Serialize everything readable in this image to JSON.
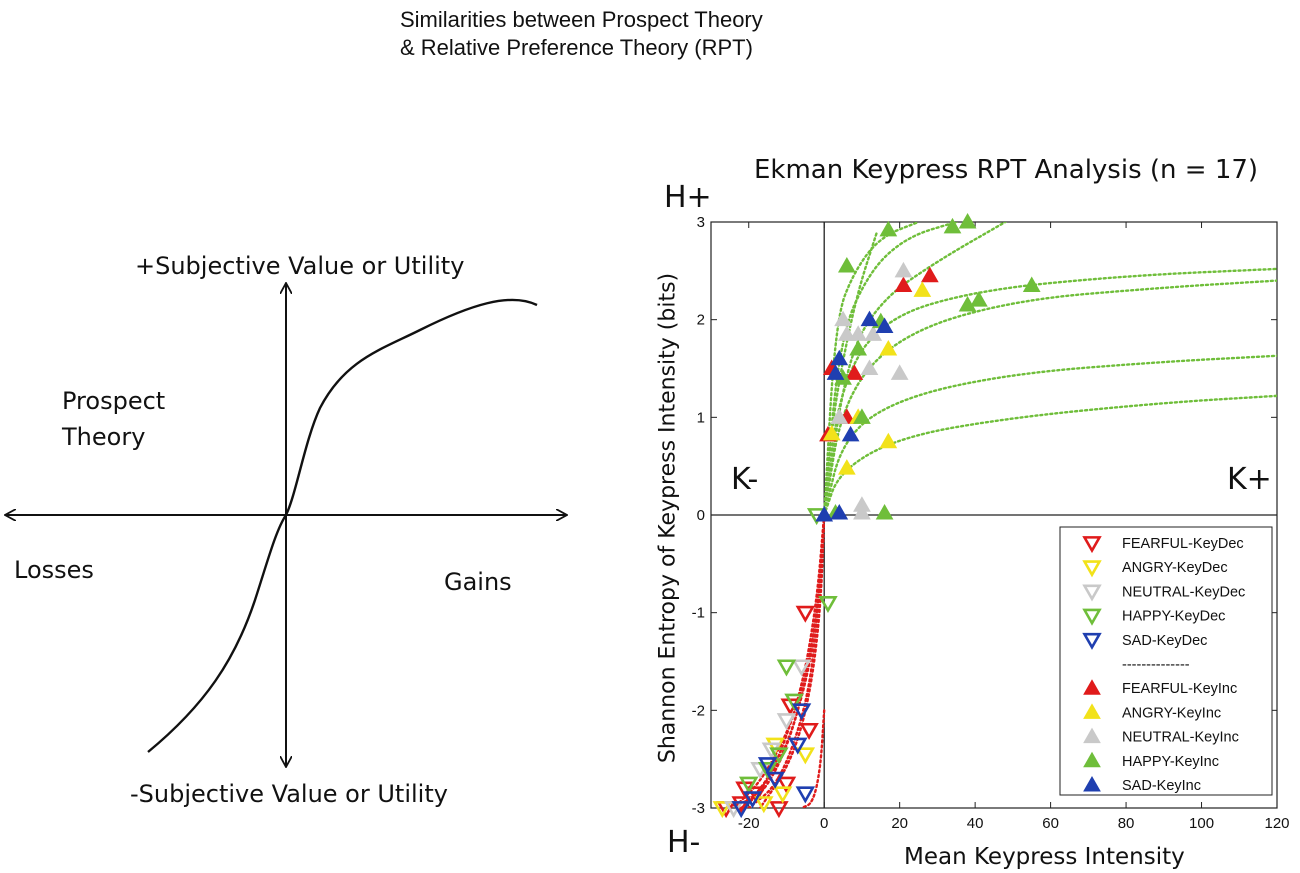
{
  "figure_title": {
    "line1": "Similarities between Prospect Theory",
    "line2": "& Relative Preference Theory (RPT)"
  },
  "prospect_panel": {
    "y_pos_label": "+Subjective Value or Utility",
    "y_neg_label": "-Subjective Value or Utility",
    "x_neg_label": "Losses",
    "x_pos_label": "Gains",
    "theory_line1": "Prospect",
    "theory_line2": "Theory"
  },
  "rpt_panel": {
    "h_plus": "H+",
    "h_minus": "H-",
    "k_minus": "K-",
    "k_plus": "K+"
  },
  "colors": {
    "fearful": "#e01b1b",
    "angry": "#f2e21a",
    "neutral": "#c9c9c9",
    "happy": "#6fbe3a",
    "sad": "#1f3fb0"
  },
  "chart_data": {
    "type": "scatter",
    "title": "Ekman Keypress RPT Analysis (n = 17)",
    "xlabel": "Mean Keypress Intensity",
    "ylabel": "Shannon Entropy of Keypress Intensity (bits)",
    "xlim": [
      -30,
      120
    ],
    "ylim": [
      -3,
      3
    ],
    "xticks": [
      -20,
      0,
      20,
      40,
      60,
      80,
      100,
      120
    ],
    "yticks": [
      -3,
      -2,
      -1,
      0,
      1,
      2,
      3
    ],
    "legend_position": "bottom-right",
    "legend_separator": "--------------",
    "series": [
      {
        "name": "FEARFUL-KeyDec",
        "color": "fearful",
        "marker": "down",
        "points": [
          [
            -5,
            -1.0
          ],
          [
            -18,
            -2.85
          ],
          [
            -22,
            -2.95
          ],
          [
            -26,
            -3.0
          ],
          [
            -12,
            -3.0
          ],
          [
            -9,
            -1.95
          ],
          [
            -4,
            -2.2
          ],
          [
            -10,
            -2.75
          ],
          [
            -21,
            -2.8
          ]
        ]
      },
      {
        "name": "ANGRY-KeyDec",
        "color": "angry",
        "marker": "down",
        "points": [
          [
            -5,
            -2.45
          ],
          [
            -16,
            -2.95
          ],
          [
            -11,
            -2.85
          ],
          [
            -27,
            -3.0
          ],
          [
            -13,
            -2.35
          ]
        ]
      },
      {
        "name": "NEUTRAL-KeyDec",
        "color": "neutral",
        "marker": "down",
        "points": [
          [
            -14,
            -2.4
          ],
          [
            -6,
            -1.55
          ],
          [
            -17,
            -2.6
          ],
          [
            -24,
            -3.0
          ],
          [
            -10,
            -2.1
          ]
        ]
      },
      {
        "name": "HAPPY-KeyDec",
        "color": "happy",
        "marker": "down",
        "points": [
          [
            1,
            -0.9
          ],
          [
            -10,
            -1.55
          ],
          [
            -8,
            -1.9
          ],
          [
            -12,
            -2.45
          ],
          [
            -20,
            -2.75
          ],
          [
            -15,
            -2.6
          ],
          [
            -2,
            0.0
          ]
        ]
      },
      {
        "name": "SAD-KeyDec",
        "color": "sad",
        "marker": "down",
        "points": [
          [
            -6,
            -2.0
          ],
          [
            -7,
            -2.35
          ],
          [
            -15,
            -2.55
          ],
          [
            -22,
            -3.0
          ],
          [
            -5,
            -2.85
          ],
          [
            -19,
            -2.9
          ],
          [
            -13,
            -2.7
          ]
        ]
      },
      {
        "name": "FEARFUL-KeyInc",
        "color": "fearful",
        "marker": "up",
        "points": [
          [
            21,
            2.35
          ],
          [
            28,
            2.45
          ],
          [
            2,
            1.5
          ],
          [
            8,
            1.45
          ],
          [
            6,
            1.0
          ],
          [
            1,
            0.82
          ]
        ]
      },
      {
        "name": "ANGRY-KeyInc",
        "color": "angry",
        "marker": "up",
        "points": [
          [
            26,
            2.3
          ],
          [
            17,
            1.7
          ],
          [
            17,
            0.75
          ],
          [
            6,
            0.48
          ],
          [
            2,
            0.83
          ],
          [
            9,
            1.0
          ]
        ]
      },
      {
        "name": "NEUTRAL-KeyInc",
        "color": "neutral",
        "marker": "up",
        "points": [
          [
            21,
            2.5
          ],
          [
            5,
            2.0
          ],
          [
            9,
            1.85
          ],
          [
            13,
            1.85
          ],
          [
            12,
            1.5
          ],
          [
            20,
            1.45
          ],
          [
            4,
            1.0
          ],
          [
            10,
            0.1
          ],
          [
            10,
            0.02
          ],
          [
            6,
            1.85
          ]
        ]
      },
      {
        "name": "HAPPY-KeyInc",
        "color": "happy",
        "marker": "up",
        "points": [
          [
            17,
            2.92
          ],
          [
            34,
            2.95
          ],
          [
            38,
            3.0
          ],
          [
            6,
            2.55
          ],
          [
            15,
            1.98
          ],
          [
            9,
            1.7
          ],
          [
            5,
            1.4
          ],
          [
            10,
            1.0
          ],
          [
            55,
            2.35
          ],
          [
            38,
            2.15
          ],
          [
            41,
            2.2
          ],
          [
            16,
            0.02
          ],
          [
            3,
            0.02
          ]
        ]
      },
      {
        "name": "SAD-KeyInc",
        "color": "sad",
        "marker": "up",
        "points": [
          [
            12,
            2.0
          ],
          [
            16,
            1.93
          ],
          [
            4,
            1.6
          ],
          [
            3,
            1.45
          ],
          [
            7,
            0.82
          ],
          [
            4,
            0.02
          ],
          [
            0,
            0.0
          ]
        ]
      }
    ],
    "fit_curves": [
      {
        "color": "happy",
        "curve": [
          [
            0,
            0
          ],
          [
            3,
            2.0
          ],
          [
            8,
            2.5
          ],
          [
            15,
            2.85
          ],
          [
            25,
            3.0
          ]
        ]
      },
      {
        "color": "happy",
        "curve": [
          [
            0,
            0
          ],
          [
            4,
            1.8
          ],
          [
            12,
            2.5
          ],
          [
            22,
            2.85
          ],
          [
            35,
            3.0
          ]
        ]
      },
      {
        "color": "happy",
        "curve": [
          [
            0,
            0
          ],
          [
            6,
            1.6
          ],
          [
            15,
            2.2
          ],
          [
            30,
            2.6
          ],
          [
            48,
            3.0
          ]
        ]
      },
      {
        "color": "happy",
        "curve": [
          [
            0,
            0
          ],
          [
            4,
            1.3
          ],
          [
            15,
            2.0
          ],
          [
            40,
            2.3
          ],
          [
            80,
            2.45
          ],
          [
            120,
            2.52
          ]
        ]
      },
      {
        "color": "happy",
        "curve": [
          [
            0,
            0
          ],
          [
            5,
            1.2
          ],
          [
            20,
            1.85
          ],
          [
            50,
            2.2
          ],
          [
            90,
            2.33
          ],
          [
            120,
            2.4
          ]
        ]
      },
      {
        "color": "happy",
        "curve": [
          [
            0,
            0
          ],
          [
            5,
            0.8
          ],
          [
            20,
            1.2
          ],
          [
            50,
            1.45
          ],
          [
            90,
            1.57
          ],
          [
            120,
            1.63
          ]
        ]
      },
      {
        "color": "happy",
        "curve": [
          [
            0,
            0
          ],
          [
            4,
            0.45
          ],
          [
            20,
            0.8
          ],
          [
            50,
            1.0
          ],
          [
            90,
            1.15
          ],
          [
            120,
            1.22
          ]
        ]
      },
      {
        "color": "happy",
        "curve": [
          [
            0,
            0
          ],
          [
            2,
            0.9
          ],
          [
            5,
            1.6
          ],
          [
            9,
            2.3
          ],
          [
            14,
            2.9
          ]
        ]
      },
      {
        "color": "fearful",
        "curve": [
          [
            0,
            0
          ],
          [
            -1,
            -0.6
          ],
          [
            -3,
            -1.3
          ],
          [
            -8,
            -2.2
          ],
          [
            -15,
            -2.8
          ],
          [
            -22,
            -3.0
          ]
        ]
      },
      {
        "color": "fearful",
        "curve": [
          [
            0,
            0
          ],
          [
            -1,
            -0.8
          ],
          [
            -4,
            -1.6
          ],
          [
            -10,
            -2.4
          ],
          [
            -18,
            -2.9
          ],
          [
            -26,
            -3.0
          ]
        ]
      },
      {
        "color": "fearful",
        "curve": [
          [
            0,
            0
          ],
          [
            -2,
            -0.9
          ],
          [
            -6,
            -1.8
          ],
          [
            -13,
            -2.6
          ],
          [
            -20,
            -2.95
          ]
        ]
      },
      {
        "color": "fearful",
        "curve": [
          [
            0,
            0
          ],
          [
            -1,
            -0.5
          ],
          [
            -2,
            -1.2
          ],
          [
            -5,
            -2.0
          ],
          [
            -12,
            -2.75
          ],
          [
            -20,
            -3.0
          ]
        ]
      },
      {
        "color": "fearful",
        "curve": [
          [
            0,
            -2.0
          ],
          [
            -1,
            -2.6
          ],
          [
            -3,
            -2.95
          ],
          [
            -6,
            -3.0
          ]
        ]
      },
      {
        "color": "fearful",
        "curve": [
          [
            0,
            0
          ],
          [
            -2,
            -1.1
          ],
          [
            -7,
            -2.0
          ],
          [
            -16,
            -2.7
          ],
          [
            -24,
            -3.0
          ]
        ]
      },
      {
        "color": "fearful",
        "curve": [
          [
            0,
            0
          ],
          [
            -1,
            -1.0
          ],
          [
            -4,
            -1.9
          ],
          [
            -9,
            -2.55
          ],
          [
            -17,
            -3.0
          ]
        ]
      }
    ]
  }
}
